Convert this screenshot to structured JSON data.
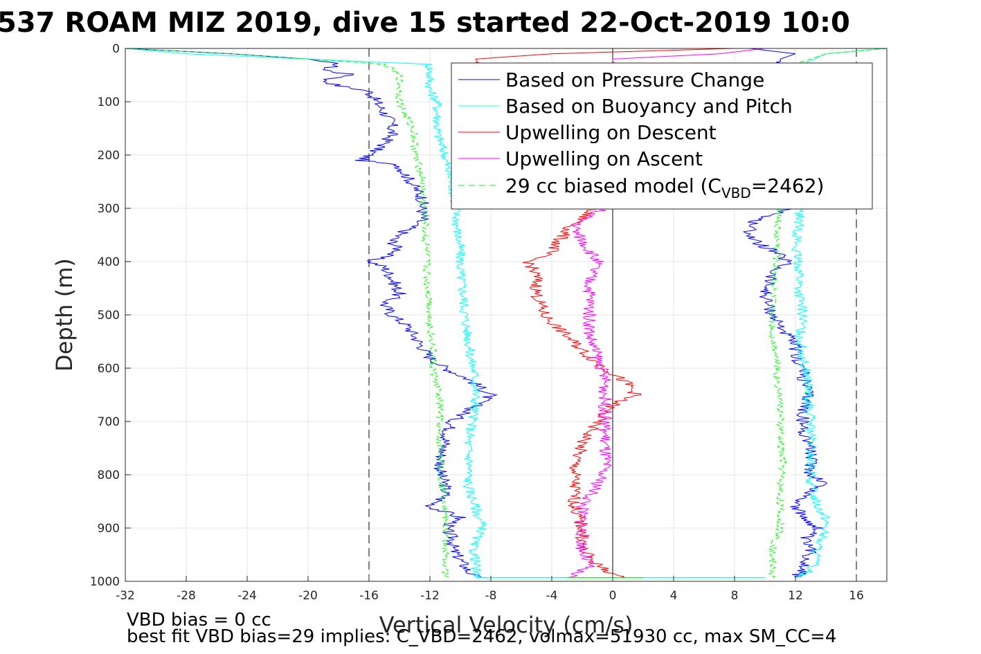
{
  "chart_data": {
    "type": "line",
    "title": "537 ROAM MIZ 2019, dive 15 started 22-Oct-2019 10:0",
    "xlabel": "Vertical Velocity (cm/s)",
    "ylabel": "Depth (m)",
    "xlim": [
      -32,
      18
    ],
    "ylim": [
      0,
      1000
    ],
    "y_reversed": true,
    "grid": true,
    "xticks": [
      -32,
      -28,
      -24,
      -20,
      -16,
      -12,
      -8,
      -4,
      0,
      4,
      8,
      12,
      16
    ],
    "xtick_labels": [
      "-32",
      "-28",
      "-24",
      "-20",
      "-16",
      "-12",
      "-8",
      "-4",
      "0",
      "4",
      "8",
      "12",
      "16"
    ],
    "yticks": [
      0,
      100,
      200,
      300,
      400,
      500,
      600,
      700,
      800,
      900,
      1000
    ],
    "ytick_labels": [
      "0",
      "100",
      "200",
      "300",
      "400",
      "500",
      "600",
      "700",
      "800",
      "900",
      "1000"
    ],
    "reference_lines": {
      "dashed_x": [
        -16,
        16
      ],
      "solid_x": [
        0
      ]
    },
    "legend": {
      "position": "top-right",
      "entries": [
        {
          "label": "Based on Pressure Change",
          "color": "#0000ff",
          "style": "solid"
        },
        {
          "label": "Based on Buoyancy and Pitch",
          "color": "#00ffff",
          "style": "solid"
        },
        {
          "label": "Upwelling on Descent",
          "color": "#ff0000",
          "style": "solid"
        },
        {
          "label": "Upwelling on Ascent",
          "color": "#ff00ff",
          "style": "solid"
        },
        {
          "label_main": "29 cc biased model (C",
          "label_sub": "VBD",
          "label_tail": "=2462)",
          "color": "#00ff00",
          "style": "dashed"
        }
      ]
    },
    "series": [
      {
        "name": "Based on Pressure Change",
        "color": "#0000ff",
        "segments": [
          {
            "depth": [
              0,
              10,
              20,
              30,
              40,
              50,
              60,
              70,
              80,
              100,
              120,
              140,
              160,
              180,
              200,
              210,
              220,
              240,
              260,
              280,
              300,
              320,
              340,
              360,
              380,
              400,
              410,
              430,
              460,
              480,
              500,
              520,
              540,
              560,
              580,
              600,
              620,
              640,
              650,
              660,
              680,
              700,
              720,
              740,
              760,
              780,
              800,
              820,
              840,
              860,
              880,
              900,
              920,
              940,
              960,
              980,
              993
            ],
            "velocity": [
              -32,
              -25,
              -20,
              -18,
              -19,
              -17,
              -19,
              -18,
              -16,
              -15.5,
              -15,
              -14.5,
              -14.5,
              -15,
              -16,
              -16.5,
              -14,
              -13.5,
              -13,
              -12.5,
              -12.5,
              -12.5,
              -13.5,
              -14.5,
              -14,
              -16,
              -15,
              -14.5,
              -14,
              -15,
              -14.5,
              -13.5,
              -13,
              -12.5,
              -12,
              -11,
              -9.5,
              -8.5,
              -8,
              -8.5,
              -9.5,
              -10.5,
              -10.8,
              -11,
              -11.2,
              -11.3,
              -11.3,
              -11,
              -11,
              -12,
              -10,
              -11,
              -10.5,
              -10.5,
              -10,
              -9.5,
              -9
            ]
          },
          {
            "depth": [
              0,
              10,
              20,
              280,
              300,
              320,
              340,
              360,
              380,
              400,
              420,
              440,
              460,
              480,
              500,
              520,
              540,
              560,
              580,
              600,
              620,
              640,
              660,
              680,
              700,
              720,
              740,
              760,
              780,
              800,
              815,
              830,
              860,
              880,
              900,
              920,
              940,
              960,
              980,
              993
            ],
            "velocity": [
              9,
              12,
              11,
              12.5,
              12,
              9.5,
              9,
              9.2,
              10.5,
              11.5,
              10.5,
              10.2,
              10,
              10.2,
              10.5,
              11,
              11.5,
              12,
              12,
              12.5,
              12.5,
              12.8,
              12.8,
              12.5,
              12.5,
              12.5,
              13,
              13,
              13,
              13,
              14,
              13,
              12,
              12.5,
              13.5,
              12.5,
              13,
              12.8,
              12.5,
              12
            ]
          }
        ]
      },
      {
        "name": "Based on Buoyancy and Pitch",
        "color": "#00ffff",
        "segments": [
          {
            "depth": [
              0,
              10,
              30,
              50,
              80,
              100,
              130,
              160,
              200,
              230,
              260,
              300,
              340,
              380,
              420,
              460,
              500,
              540,
              580,
              620,
              660,
              700,
              740,
              780,
              820,
              860,
              880,
              900,
              930,
              960,
              980,
              993
            ],
            "velocity": [
              -32,
              -28,
              -12,
              -12,
              -12,
              -11.5,
              -11.5,
              -11.5,
              -11,
              -10.8,
              -10.5,
              -10.3,
              -10.2,
              -10,
              -10,
              -9.8,
              -9.7,
              -9.5,
              -9.3,
              -9,
              -9,
              -9.2,
              -9.5,
              -9.4,
              -9.5,
              -9,
              -8.8,
              -8.5,
              -9.2,
              -9,
              -9,
              -9
            ]
          },
          {
            "depth": [
              0,
              10,
              30,
              300,
              340,
              380,
              420,
              460,
              500,
              540,
              580,
              620,
              660,
              700,
              740,
              780,
              820,
              860,
              880,
              900,
              930,
              960,
              980,
              993
            ],
            "velocity": [
              18,
              14,
              12.5,
              12.3,
              12.2,
              12,
              12.3,
              12.2,
              12.5,
              12.3,
              12.5,
              12.8,
              12.8,
              13,
              13,
              13,
              13,
              13.5,
              14,
              14,
              13.5,
              13.3,
              13,
              12
            ]
          }
        ]
      },
      {
        "name": "Upwelling on Descent",
        "color": "#ff0000",
        "segments": [
          {
            "depth": [
              0,
              10,
              20,
              300,
              320,
              340,
              360,
              380,
              400,
              430,
              460,
              500,
              540,
              580,
              610,
              630,
              650,
              660,
              680,
              700,
              740,
              780,
              820,
              860,
              900,
              940,
              970,
              993
            ],
            "velocity": [
              8,
              -4,
              -9,
              -1.5,
              -2,
              -3,
              -3.5,
              -4,
              -5.5,
              -5,
              -5,
              -4.5,
              -3,
              -1.5,
              0,
              1,
              1.5,
              0.5,
              -0.5,
              -1,
              -2,
              -2.5,
              -2.5,
              -2.5,
              -2,
              -2,
              -1,
              0.5
            ]
          }
        ]
      },
      {
        "name": "Upwelling on Ascent",
        "color": "#ff00ff",
        "segments": [
          {
            "depth": [
              0,
              10,
              20,
              300,
              320,
              340,
              360,
              380,
              400,
              430,
              460,
              500,
              540,
              580,
              620,
              660,
              700,
              740,
              780,
              820,
              860,
              900,
              940,
              970,
              993
            ],
            "velocity": [
              10,
              7,
              0,
              -0.5,
              -2,
              -2.5,
              -2,
              -1.5,
              -1,
              -1.5,
              -1.5,
              -1.5,
              -1.5,
              -1,
              -0.5,
              -0.5,
              -0.5,
              -0.5,
              -0.5,
              -1,
              -2,
              -2,
              -2,
              -1.5,
              -3
            ]
          }
        ]
      },
      {
        "name": "29 cc biased model (CVBD=2462)",
        "color": "#00ff00",
        "dashed": true,
        "segments": [
          {
            "depth": [
              0,
              10,
              30,
              50,
              80,
              100,
              130,
              160,
              200,
              240,
              280,
              320,
              360,
              400,
              440,
              480,
              520,
              560,
              600,
              640,
              680,
              720,
              760,
              800,
              840,
              880,
              920,
              960,
              993
            ],
            "velocity": [
              -32,
              -25,
              -15,
              -14,
              -14,
              -14,
              -13.5,
              -13,
              -13,
              -12.5,
              -12.5,
              -12.3,
              -12.3,
              -12.2,
              -12.2,
              -12,
              -12,
              -11.8,
              -11.8,
              -11.5,
              -11.3,
              -11.5,
              -11.3,
              -11.3,
              -11,
              -11,
              -11,
              -11,
              -11
            ]
          },
          {
            "depth": [
              0,
              10,
              30,
              300,
              340,
              380,
              420,
              460,
              500,
              540,
              580,
              620,
              660,
              700,
              740,
              780,
              820,
              860,
              900,
              940,
              980,
              993
            ],
            "velocity": [
              18,
              14,
              12,
              11,
              10.8,
              10.8,
              10.7,
              10.5,
              10.5,
              10.5,
              10.8,
              10.8,
              11,
              11,
              11,
              11.2,
              11,
              11,
              11,
              10.5,
              10.5,
              10.5
            ]
          }
        ]
      }
    ],
    "bottom_connector": {
      "depth": 993,
      "from_velocity": -9,
      "to_velocity": 10,
      "color": "#00ffff"
    },
    "annotations": [
      "VBD bias = 0 cc",
      "best fit VBD bias=29 implies: C_VBD=2462, volmax=51930 cc, max SM_CC=4"
    ]
  }
}
